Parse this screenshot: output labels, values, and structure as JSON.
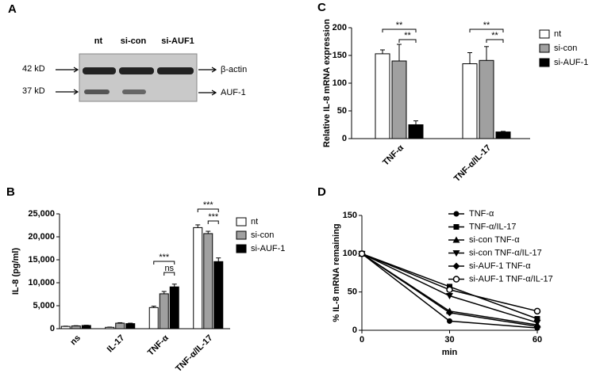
{
  "blot": {
    "label": "A",
    "lanes": [
      "nt",
      "si-con",
      "si-AUF1"
    ],
    "rows": [
      {
        "size": "42 kD",
        "name": "β-actin"
      },
      {
        "size": "37 kD",
        "name": "AUF-1"
      }
    ]
  },
  "chart_data": [
    {
      "type": "bar",
      "label": "B",
      "ylabel": "IL-8 (pg/ml)",
      "categories": [
        "ns",
        "IL-17",
        "TNF-α",
        "TNF-α/IL-17"
      ],
      "series": [
        {
          "name": "nt",
          "color": "#ffffff",
          "values": [
            500,
            300,
            4600,
            22000
          ],
          "errors": [
            50,
            50,
            300,
            600
          ]
        },
        {
          "name": "si-con",
          "color": "#a0a0a0",
          "values": [
            600,
            1200,
            7600,
            20700
          ],
          "errors": [
            50,
            100,
            500,
            500
          ]
        },
        {
          "name": "si-AUF-1",
          "color": "#000000",
          "values": [
            700,
            1100,
            9100,
            14600
          ],
          "errors": [
            50,
            100,
            600,
            800
          ]
        }
      ],
      "ylim": [
        0,
        25000
      ],
      "yticks": [
        0,
        {
          "value": 5000,
          "label": "5,000"
        },
        {
          "value": 10000,
          "label": "10,000"
        },
        {
          "value": 15000,
          "label": "15,000"
        },
        {
          "value": 20000,
          "label": "20,000"
        },
        {
          "value": 25000,
          "label": "25,000"
        }
      ],
      "annotations": [
        "***",
        "ns",
        "***",
        "***"
      ]
    },
    {
      "type": "bar",
      "label": "C",
      "ylabel": "Relative IL-8 mRNA expression",
      "categories": [
        "TNF-α",
        "TNF-α/IL-17"
      ],
      "series": [
        {
          "name": "nt",
          "color": "#ffffff",
          "values": [
            153,
            135
          ],
          "errors": [
            7,
            20
          ]
        },
        {
          "name": "si-con",
          "color": "#a0a0a0",
          "values": [
            140,
            141
          ],
          "errors": [
            30,
            25
          ]
        },
        {
          "name": "si-AUF-1",
          "color": "#000000",
          "values": [
            25,
            12
          ],
          "errors": [
            7,
            1
          ]
        }
      ],
      "ylim": [
        0,
        200
      ],
      "yticks": [
        0,
        50,
        100,
        150,
        200
      ],
      "annotations": [
        "**",
        "**",
        "**",
        "**"
      ]
    },
    {
      "type": "line",
      "label": "D",
      "xlabel": "min",
      "ylabel": "% IL-8 mRNA remaining",
      "x": [
        0,
        30,
        60
      ],
      "xlim": [
        0,
        60
      ],
      "xticks": [
        0,
        30,
        60
      ],
      "ylim": [
        0,
        150
      ],
      "yticks": [
        0,
        50,
        100,
        150
      ],
      "series": [
        {
          "name": "TNF-α",
          "color": "#000000",
          "marker": "circle",
          "values": [
            100,
            12,
            3
          ]
        },
        {
          "name": "TNF-α/IL-17",
          "color": "#000000",
          "marker": "square",
          "values": [
            100,
            57,
            15
          ]
        },
        {
          "name": "si-con TNF-α",
          "color": "#000000",
          "marker": "triangle",
          "values": [
            100,
            25,
            7
          ]
        },
        {
          "name": "si-con TNF-α/IL-17",
          "color": "#000000",
          "marker": "triangle-down",
          "values": [
            100,
            45,
            10
          ]
        },
        {
          "name": "si-AUF-1 TNF-α",
          "color": "#000000",
          "marker": "diamond",
          "values": [
            100,
            23,
            5
          ]
        },
        {
          "name": "si-AUF-1 TNF-α/IL-17",
          "color": "#000000",
          "marker": "circle-open",
          "values": [
            100,
            53,
            25
          ]
        }
      ]
    }
  ]
}
